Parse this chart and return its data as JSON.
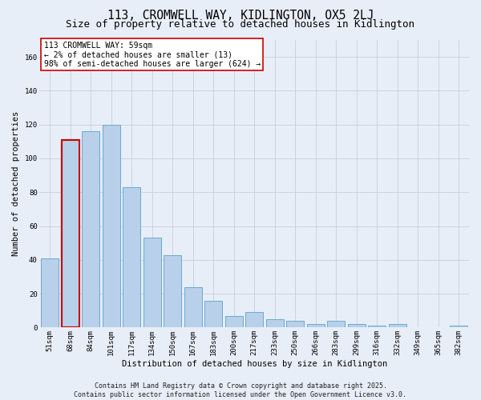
{
  "title": "113, CROMWELL WAY, KIDLINGTON, OX5 2LJ",
  "subtitle": "Size of property relative to detached houses in Kidlington",
  "xlabel": "Distribution of detached houses by size in Kidlington",
  "ylabel": "Number of detached properties",
  "categories": [
    "51sqm",
    "68sqm",
    "84sqm",
    "101sqm",
    "117sqm",
    "134sqm",
    "150sqm",
    "167sqm",
    "183sqm",
    "200sqm",
    "217sqm",
    "233sqm",
    "250sqm",
    "266sqm",
    "283sqm",
    "299sqm",
    "316sqm",
    "332sqm",
    "349sqm",
    "365sqm",
    "382sqm"
  ],
  "values": [
    41,
    111,
    116,
    120,
    83,
    53,
    43,
    24,
    16,
    7,
    9,
    5,
    4,
    2,
    4,
    2,
    1,
    2,
    0,
    0,
    1
  ],
  "bar_color": "#b8d0ea",
  "bar_edge_color": "#6aaad4",
  "annotation_text": "113 CROMWELL WAY: 59sqm\n← 2% of detached houses are smaller (13)\n98% of semi-detached houses are larger (624) →",
  "annotation_box_color": "#ffffff",
  "annotation_box_edge_color": "#cc0000",
  "highlight_bar_index": 1,
  "highlight_bar_edge_color": "#cc0000",
  "ylim": [
    0,
    170
  ],
  "yticks": [
    0,
    20,
    40,
    60,
    80,
    100,
    120,
    140,
    160
  ],
  "background_color": "#e8eef8",
  "footer_text": "Contains HM Land Registry data © Crown copyright and database right 2025.\nContains public sector information licensed under the Open Government Licence v3.0.",
  "title_fontsize": 10.5,
  "subtitle_fontsize": 9,
  "xlabel_fontsize": 7.5,
  "ylabel_fontsize": 7.5,
  "tick_fontsize": 6.5,
  "annotation_fontsize": 7,
  "footer_fontsize": 6
}
